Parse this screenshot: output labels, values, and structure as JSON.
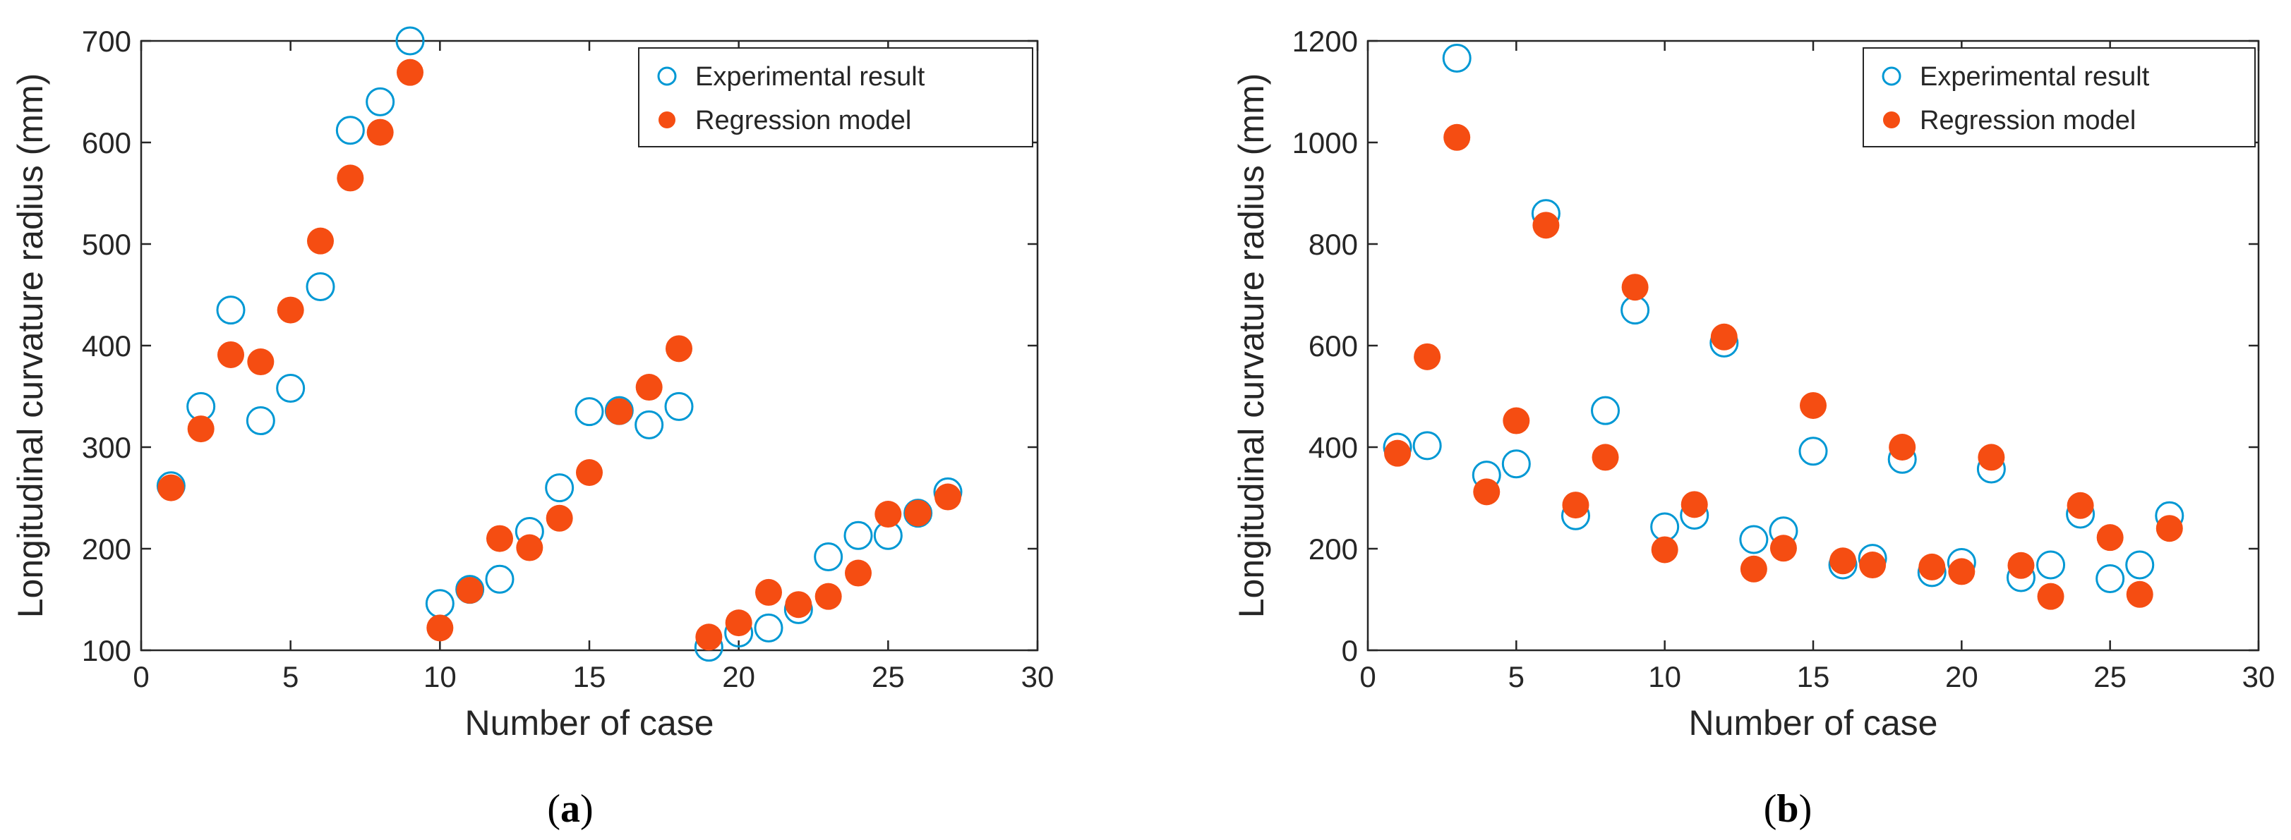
{
  "chart_data": [
    {
      "type": "scatter",
      "caption_open": "(",
      "caption_letter": "a",
      "caption_close": ")",
      "xlabel": "Number of case",
      "ylabel": "Longitudinal curvature radius (mm)",
      "xlim": [
        0,
        30
      ],
      "ylim": [
        100,
        700
      ],
      "xticks": [
        0,
        5,
        10,
        15,
        20,
        25,
        30
      ],
      "yticks": [
        100,
        200,
        300,
        400,
        500,
        600,
        700
      ],
      "legend_position": "top-right",
      "grid": false,
      "series": [
        {
          "name": "Experimental result",
          "marker": "open-circle",
          "color": "#0098d4",
          "x": [
            1,
            2,
            3,
            4,
            5,
            6,
            7,
            8,
            9,
            10,
            11,
            12,
            13,
            14,
            15,
            16,
            17,
            18,
            19,
            20,
            21,
            22,
            23,
            24,
            25,
            26,
            27
          ],
          "y": [
            262,
            340,
            435,
            326,
            358,
            458,
            612,
            640,
            700,
            146,
            160,
            170,
            217,
            260,
            335,
            336,
            322,
            340,
            103,
            117,
            122,
            140,
            192,
            213,
            213,
            235,
            256
          ]
        },
        {
          "name": "Regression model",
          "marker": "filled-circle",
          "color": "#f54d12",
          "x": [
            1,
            2,
            3,
            4,
            5,
            6,
            7,
            8,
            9,
            10,
            11,
            12,
            13,
            14,
            15,
            16,
            17,
            18,
            19,
            20,
            21,
            22,
            23,
            24,
            25,
            26,
            27
          ],
          "y": [
            260,
            318,
            391,
            384,
            435,
            503,
            565,
            610,
            669,
            122,
            159,
            210,
            201,
            230,
            275,
            335,
            359,
            397,
            113,
            127,
            157,
            145,
            153,
            176,
            234,
            235,
            251
          ]
        }
      ]
    },
    {
      "type": "scatter",
      "caption_open": "(",
      "caption_letter": "b",
      "caption_close": ")",
      "xlabel": "Number of case",
      "ylabel": "Longitudinal curvature radius (mm)",
      "xlim": [
        0,
        30
      ],
      "ylim": [
        0,
        1200
      ],
      "xticks": [
        0,
        5,
        10,
        15,
        20,
        25,
        30
      ],
      "yticks": [
        0,
        200,
        400,
        600,
        800,
        1000,
        1200
      ],
      "legend_position": "top-right",
      "grid": false,
      "series": [
        {
          "name": "Experimental result",
          "marker": "open-circle",
          "color": "#0098d4",
          "x": [
            1,
            2,
            3,
            4,
            5,
            6,
            7,
            8,
            9,
            10,
            11,
            12,
            13,
            14,
            15,
            16,
            17,
            18,
            19,
            20,
            21,
            22,
            23,
            24,
            25,
            26,
            27
          ],
          "y": [
            400,
            403,
            1166,
            345,
            367,
            860,
            265,
            472,
            670,
            243,
            266,
            605,
            218,
            235,
            392,
            168,
            181,
            376,
            153,
            173,
            357,
            143,
            168,
            268,
            141,
            168,
            265
          ]
        },
        {
          "name": "Regression model",
          "marker": "filled-circle",
          "color": "#f54d12",
          "x": [
            1,
            2,
            3,
            4,
            5,
            6,
            7,
            8,
            9,
            10,
            11,
            12,
            13,
            14,
            15,
            16,
            17,
            18,
            19,
            20,
            21,
            22,
            23,
            24,
            25,
            26,
            27
          ],
          "y": [
            388,
            578,
            1010,
            312,
            452,
            837,
            286,
            380,
            715,
            198,
            287,
            617,
            160,
            201,
            482,
            176,
            168,
            400,
            164,
            155,
            380,
            167,
            106,
            285,
            222,
            110,
            240
          ]
        }
      ]
    }
  ]
}
